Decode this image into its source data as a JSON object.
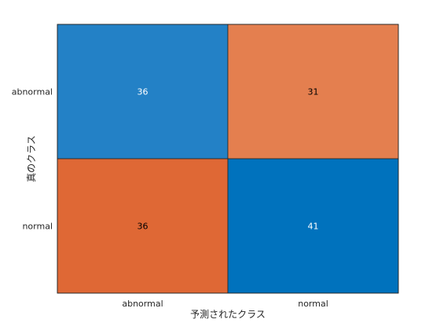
{
  "chart_data": {
    "type": "heatmap",
    "title": "",
    "xlabel": "予測されたクラス",
    "ylabel": "真のクラス",
    "x_categories": [
      "abnormal",
      "normal"
    ],
    "y_categories": [
      "abnormal",
      "normal"
    ],
    "values": [
      [
        36,
        31
      ],
      [
        36,
        41
      ]
    ],
    "cell_colors": [
      [
        "#2381C6",
        "#E47F4F"
      ],
      [
        "#DF6835",
        "#0072BD"
      ]
    ],
    "cell_text_colors": [
      [
        "#ffffff",
        "#000000"
      ],
      [
        "#000000",
        "#ffffff"
      ]
    ],
    "grid": true,
    "legend": "none"
  }
}
